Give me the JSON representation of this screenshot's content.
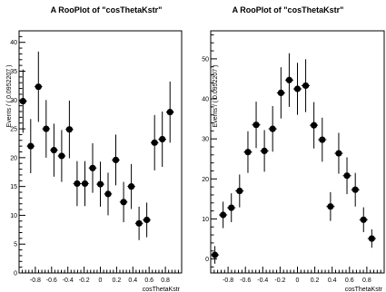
{
  "chart_data": [
    {
      "type": "scatter",
      "title": "A RooPlot of \"cosThetaKstr\"",
      "xlabel": "cosThetaKstr",
      "ylabel": "Events / ( 0.0952207 )",
      "xlim": [
        -1,
        1
      ],
      "ylim": [
        0,
        42
      ],
      "xticks": [
        -0.8,
        -0.6,
        -0.4,
        -0.2,
        0,
        0.2,
        0.4,
        0.6,
        0.8
      ],
      "yticks": [
        0,
        5,
        10,
        15,
        20,
        25,
        30,
        35,
        40
      ],
      "grid": false,
      "marker_color": "#000000",
      "series": [
        {
          "x": [
            -0.952,
            -0.857,
            -0.762,
            -0.667,
            -0.571,
            -0.476,
            -0.381,
            -0.286,
            -0.19,
            -0.095,
            0.0,
            0.095,
            0.19,
            0.286,
            0.381,
            0.476,
            0.571,
            0.667,
            0.762,
            0.857,
            0.952
          ],
          "y": [
            29.8,
            22.0,
            32.3,
            25.0,
            21.3,
            20.3,
            24.9,
            15.5,
            15.5,
            18.2,
            15.4,
            13.7,
            19.6,
            12.3,
            15.0,
            8.6,
            9.2,
            22.6,
            23.2,
            27.9,
            0
          ],
          "err": [
            5.5,
            4.7,
            6.1,
            5.0,
            4.6,
            4.5,
            5.0,
            3.9,
            3.9,
            4.3,
            3.9,
            3.7,
            4.4,
            3.5,
            3.9,
            2.9,
            3.0,
            4.8,
            4.8,
            5.3,
            0
          ],
          "show": [
            true,
            true,
            true,
            true,
            true,
            true,
            true,
            true,
            true,
            true,
            true,
            true,
            true,
            true,
            true,
            true,
            true,
            true,
            true,
            true,
            false
          ]
        }
      ]
    },
    {
      "type": "scatter",
      "title": "A RooPlot of \"cosThetaKstr\"",
      "xlabel": "cosThetaKstr",
      "ylabel": "Events / ( 0.0952207 )",
      "xlim": [
        -1,
        1
      ],
      "ylim": [
        -3.5,
        57
      ],
      "xticks": [
        -0.8,
        -0.6,
        -0.4,
        -0.2,
        0,
        0.2,
        0.4,
        0.6,
        0.8
      ],
      "yticks": [
        0,
        10,
        20,
        30,
        40,
        50
      ],
      "grid": false,
      "marker_color": "#000000",
      "series": [
        {
          "x": [
            -0.952,
            -0.857,
            -0.762,
            -0.667,
            -0.571,
            -0.476,
            -0.381,
            -0.286,
            -0.19,
            -0.095,
            0.0,
            0.095,
            0.19,
            0.286,
            0.381,
            0.476,
            0.571,
            0.667,
            0.762,
            0.857,
            0.952
          ],
          "y": [
            1.0,
            11.0,
            12.8,
            17.0,
            26.7,
            33.5,
            27.0,
            32.5,
            41.5,
            44.7,
            42.5,
            43.3,
            33.4,
            29.8,
            13.1,
            26.4,
            20.8,
            17.3,
            9.8,
            5.1,
            0
          ],
          "err": [
            2.2,
            3.3,
            3.6,
            4.1,
            5.2,
            5.8,
            5.2,
            5.7,
            6.4,
            6.7,
            6.5,
            6.6,
            5.8,
            5.5,
            3.6,
            5.1,
            4.6,
            4.2,
            3.1,
            2.3,
            0
          ],
          "show": [
            true,
            true,
            true,
            true,
            true,
            true,
            true,
            true,
            true,
            true,
            true,
            true,
            true,
            true,
            true,
            true,
            true,
            true,
            true,
            true,
            false
          ]
        }
      ]
    }
  ]
}
